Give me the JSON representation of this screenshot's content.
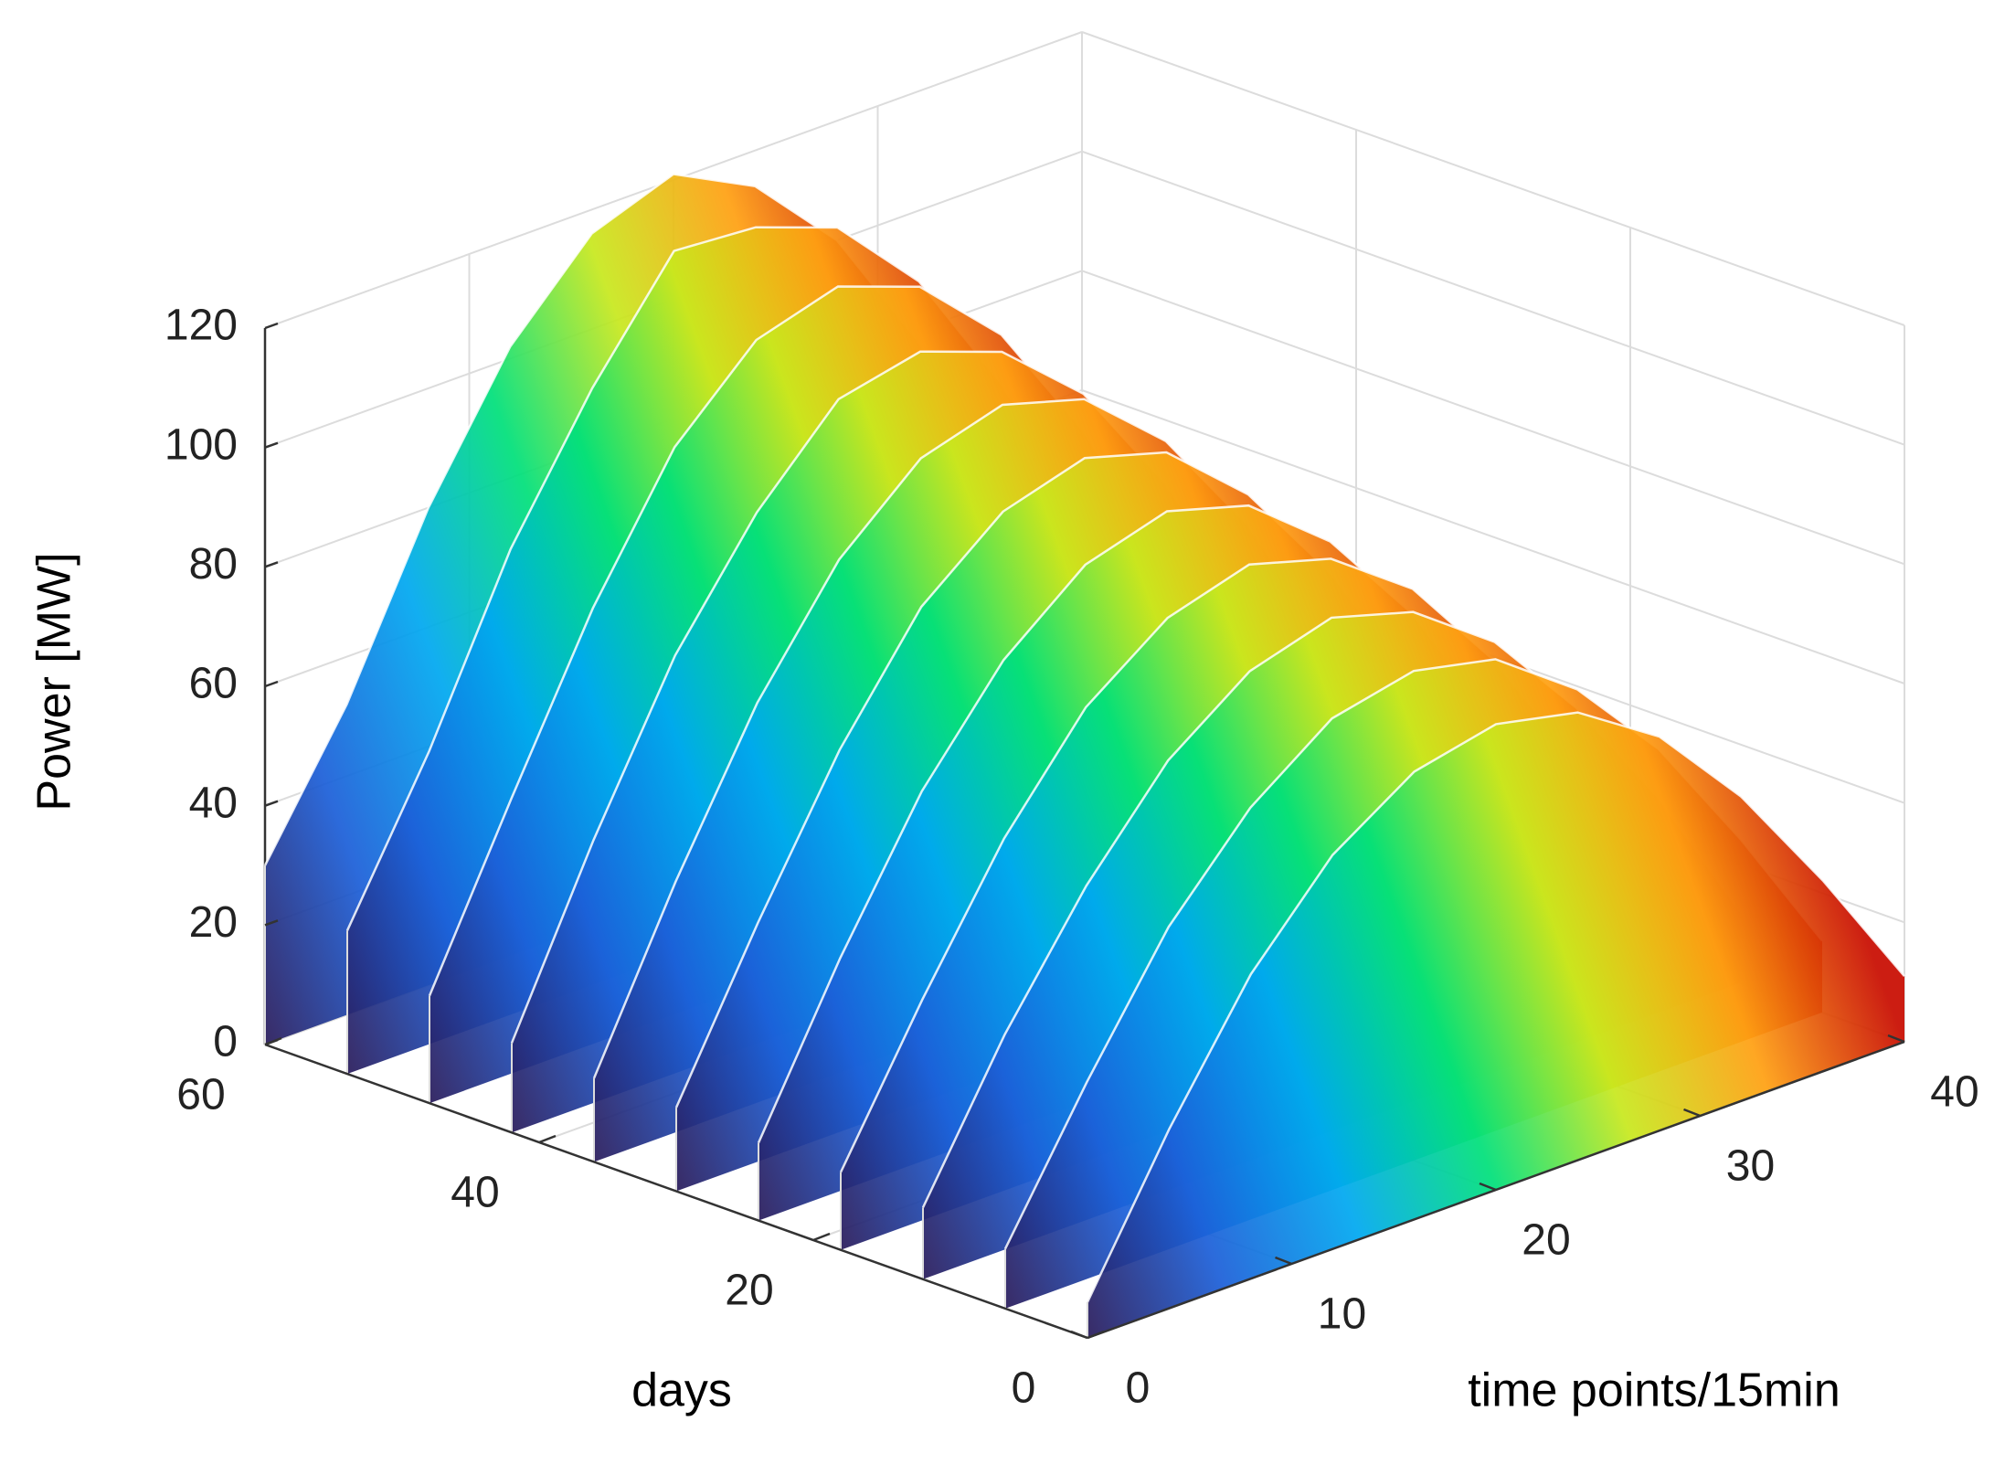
{
  "chart_data": {
    "type": "waterfall3d",
    "xlabel": "time points/15min",
    "ylabel": "days",
    "zlabel": "Power [MW]",
    "x": [
      0,
      4,
      8,
      12,
      16,
      20,
      24,
      28,
      32,
      36,
      40
    ],
    "xlim": [
      0,
      40
    ],
    "xticks": [
      0,
      10,
      20,
      30,
      40
    ],
    "ylim": [
      0,
      60
    ],
    "yticks": [
      0,
      20,
      40,
      60
    ],
    "zlim": [
      0,
      120
    ],
    "zticks": [
      0,
      20,
      40,
      60,
      80,
      100,
      120
    ],
    "grid": true,
    "colormap": [
      "#2a1b5a",
      "#1c5fd8",
      "#00a8f0",
      "#00e07a",
      "#c8e81e",
      "#ffa012",
      "#c80c00"
    ],
    "line_color": "#ffffff",
    "series": [
      {
        "day": 60,
        "values": [
          30,
          52,
          80,
          102,
          116,
          121,
          114,
          100,
          78,
          50,
          17
        ]
      },
      {
        "day": 54,
        "values": [
          24,
          49,
          78,
          100,
          118,
          117,
          112,
          98,
          76,
          49,
          17
        ]
      },
      {
        "day": 48,
        "values": [
          18,
          46,
          73,
          95,
          108,
          112,
          107,
          94,
          73,
          46,
          16
        ]
      },
      {
        "day": 42,
        "values": [
          15,
          44,
          70,
          89,
          103,
          106,
          101,
          89,
          69,
          44,
          15
        ]
      },
      {
        "day": 36,
        "values": [
          14,
          42,
          67,
          86,
          98,
          102,
          98,
          86,
          67,
          42,
          14
        ]
      },
      {
        "day": 30,
        "values": [
          14,
          40,
          64,
          83,
          94,
          98,
          94,
          82,
          64,
          41,
          14
        ]
      },
      {
        "day": 24,
        "values": [
          13,
          39,
          62,
          79,
          90,
          94,
          90,
          79,
          62,
          39,
          13
        ]
      },
      {
        "day": 18,
        "values": [
          13,
          37,
          59,
          76,
          86,
          90,
          86,
          76,
          59,
          37,
          13
        ]
      },
      {
        "day": 12,
        "values": [
          12,
          36,
          56,
          72,
          82,
          86,
          82,
          72,
          56,
          36,
          12
        ]
      },
      {
        "day": 6,
        "values": [
          10,
          33,
          54,
          69,
          79,
          82,
          79,
          69,
          54,
          34,
          12
        ]
      },
      {
        "day": 0,
        "values": [
          6,
          30,
          51,
          66,
          75,
          78,
          75,
          66,
          51,
          32,
          11
        ]
      }
    ]
  }
}
